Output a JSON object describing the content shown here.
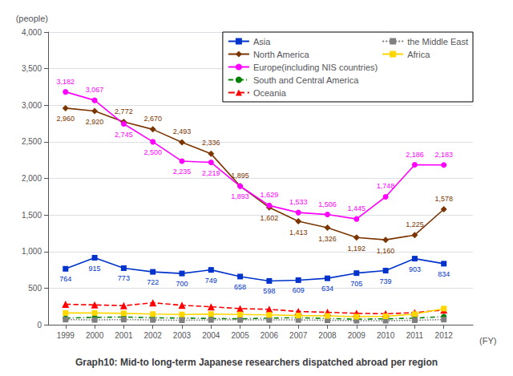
{
  "chart_data": {
    "type": "line",
    "title": "Graph10: Mid-to long-term Japanese researchers dispatched abroad per region",
    "x_label": "(FY)",
    "y_label": "(people)",
    "x": [
      1999,
      2000,
      2001,
      2002,
      2003,
      2004,
      2005,
      2006,
      2007,
      2008,
      2009,
      2010,
      2011,
      2012
    ],
    "xlim": [
      1998.4,
      2013.0
    ],
    "xticks": [
      1999,
      2000,
      2001,
      2002,
      2003,
      2004,
      2005,
      2006,
      2007,
      2008,
      2009,
      2010,
      2011,
      2012
    ],
    "ylim": [
      0,
      4000
    ],
    "yticks": [
      0,
      500,
      {
        "value": 1000,
        "label": "1,000"
      },
      {
        "value": 1500,
        "label": "1,500"
      },
      {
        "value": 2000,
        "label": "2,000"
      },
      {
        "value": 2500,
        "label": "2,500"
      },
      {
        "value": 3000,
        "label": "3,000"
      },
      {
        "value": 3500,
        "label": "3,500"
      },
      {
        "value": 4000,
        "label": "4,000"
      }
    ],
    "grid": "y",
    "legend": "upper right",
    "series": [
      {
        "name": "Asia",
        "color": "#0033CC",
        "marker": "square",
        "line_style": "solid",
        "data_labels": true,
        "values": [
          764,
          915,
          773,
          722,
          700,
          749,
          658,
          598,
          609,
          634,
          705,
          739,
          903,
          834
        ]
      },
      {
        "name": "North America",
        "color": "#7B3500",
        "marker": "diamond",
        "line_style": "solid",
        "data_labels": true,
        "values": [
          2960,
          2920,
          2772,
          2670,
          2493,
          2336,
          1895,
          1602,
          1413,
          1326,
          1192,
          1160,
          1225,
          1578
        ],
        "value_labels": [
          "2,960",
          "2,920",
          "2,772",
          "2,670",
          "2,493",
          "2,336",
          "1,895",
          "1,602",
          "1,413",
          "1,326",
          "1,192",
          "1,160",
          "1,225",
          "1,578"
        ]
      },
      {
        "name": "Europe(including NIS countries)",
        "color": "#FF00FF",
        "marker": "circle",
        "line_style": "solid",
        "data_labels": true,
        "values": [
          3182,
          3067,
          2745,
          2500,
          2235,
          2219,
          1893,
          1629,
          1533,
          1506,
          1445,
          1748,
          2186,
          2183
        ],
        "value_labels": [
          "3,182",
          "3,067",
          "2,745",
          "2,500",
          "2,235",
          "2,219",
          "1,893",
          "1,629",
          "1,533",
          "1,506",
          "1,445",
          "1,748",
          "2,186",
          "2,183"
        ]
      },
      {
        "name": "South and Central America",
        "color": "#008000",
        "marker": "circle",
        "line_style": "dashdot",
        "values": [
          90,
          100,
          105,
          95,
          90,
          85,
          80,
          90,
          95,
          85,
          75,
          80,
          90,
          110
        ]
      },
      {
        "name": "Oceania",
        "color": "#FF0000",
        "marker": "triangle",
        "line_style": "dashed",
        "values": [
          280,
          270,
          260,
          300,
          265,
          245,
          220,
          210,
          180,
          170,
          155,
          150,
          165,
          200
        ]
      },
      {
        "name": "the Middle East",
        "color": "#808080",
        "marker": "square",
        "line_style": "dotted",
        "values": [
          70,
          65,
          70,
          65,
          60,
          65,
          65,
          65,
          65,
          60,
          55,
          55,
          60,
          70
        ]
      },
      {
        "name": "Africa",
        "color": "#FFD700",
        "marker": "square",
        "line_style": "solid",
        "values": [
          160,
          160,
          155,
          145,
          140,
          145,
          140,
          135,
          125,
          120,
          110,
          115,
          145,
          220
        ]
      }
    ]
  }
}
